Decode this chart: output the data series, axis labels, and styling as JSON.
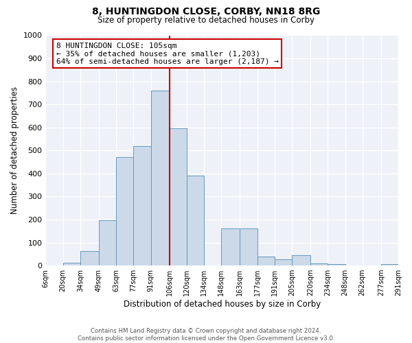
{
  "title_line1": "8, HUNTINGDON CLOSE, CORBY, NN18 8RG",
  "title_line2": "Size of property relative to detached houses in Corby",
  "xlabel": "Distribution of detached houses by size in Corby",
  "ylabel": "Number of detached properties",
  "bar_color": "#ccd9e8",
  "bar_edgecolor": "#6699bb",
  "grid_color": "#d4dde8",
  "bg_color": "#eef2f8",
  "vline_x": 106,
  "vline_color": "#cc0000",
  "annotation_line1": "8 HUNTINGDON CLOSE: 105sqm",
  "annotation_line2": "← 35% of detached houses are smaller (1,203)",
  "annotation_line3": "64% of semi-detached houses are larger (2,187) →",
  "annotation_box_edgecolor": "#cc0000",
  "annotation_box_facecolor": "#ffffff",
  "bin_edges": [
    6,
    20,
    34,
    49,
    63,
    77,
    91,
    106,
    120,
    134,
    148,
    163,
    177,
    191,
    205,
    220,
    234,
    248,
    262,
    277,
    291
  ],
  "bar_heights": [
    0,
    13,
    62,
    197,
    470,
    518,
    760,
    597,
    390,
    0,
    162,
    162,
    40,
    27,
    45,
    10,
    5,
    0,
    0,
    5
  ],
  "tick_labels": [
    "6sqm",
    "20sqm",
    "34sqm",
    "49sqm",
    "63sqm",
    "77sqm",
    "91sqm",
    "106sqm",
    "120sqm",
    "134sqm",
    "148sqm",
    "163sqm",
    "177sqm",
    "191sqm",
    "205sqm",
    "220sqm",
    "234sqm",
    "248sqm",
    "262sqm",
    "277sqm",
    "291sqm"
  ],
  "ylim": [
    0,
    1000
  ],
  "yticks": [
    0,
    100,
    200,
    300,
    400,
    500,
    600,
    700,
    800,
    900,
    1000
  ],
  "footer_line1": "Contains HM Land Registry data © Crown copyright and database right 2024.",
  "footer_line2": "Contains public sector information licensed under the Open Government Licence v3.0."
}
